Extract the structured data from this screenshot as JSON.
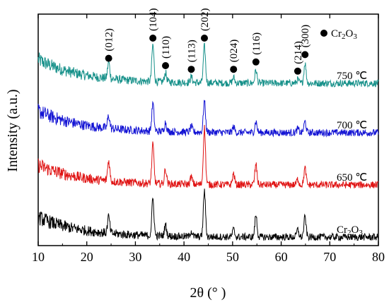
{
  "chart_data": {
    "type": "line",
    "xlabel": "2θ (° )",
    "ylabel": "Intensity (a.u.)",
    "xlim": [
      10,
      80
    ],
    "xticks": [
      "10",
      "20",
      "30",
      "40",
      "50",
      "60",
      "70",
      "80"
    ],
    "y_ticks_shown": false,
    "legend": {
      "label": "Cr",
      "sub": "2",
      "mid": "O",
      "sub2": "3",
      "position": "top-right",
      "marker": "filled-circle"
    },
    "peaks_2theta": [
      24.5,
      33.6,
      36.2,
      41.5,
      44.2,
      50.2,
      54.8,
      63.4,
      64.9
    ],
    "peak_labels": [
      {
        "hkl": "(012)",
        "x": 24.5
      },
      {
        "hkl": "(104)",
        "x": 33.6
      },
      {
        "hkl": "(110)",
        "x": 36.2
      },
      {
        "hkl": "(113)",
        "x": 41.5
      },
      {
        "hkl": "(202)",
        "x": 44.2
      },
      {
        "hkl": "(024)",
        "x": 50.2
      },
      {
        "hkl": "(116)",
        "x": 54.8
      },
      {
        "hkl": "(214)",
        "x": 63.4
      },
      {
        "hkl": "(300)",
        "x": 64.9
      }
    ],
    "series": [
      {
        "name": "750 ℃",
        "color": "#17918a",
        "relative_offset": 3,
        "peak_heights": [
          0.45,
          1.0,
          0.25,
          0.15,
          1.0,
          0.15,
          0.35,
          0.1,
          0.55
        ],
        "baseline_tail_start": 1.2
      },
      {
        "name": "700 ℃",
        "color": "#1414d4",
        "relative_offset": 2,
        "peak_heights": [
          0.35,
          0.75,
          0.25,
          0.15,
          0.85,
          0.15,
          0.3,
          0.1,
          0.3
        ],
        "baseline_tail_start": 1.1
      },
      {
        "name": "650 ℃",
        "color": "#e01414",
        "relative_offset": 1,
        "peak_heights": [
          0.55,
          1.05,
          0.4,
          0.2,
          1.55,
          0.3,
          0.55,
          0.15,
          0.45
        ],
        "baseline_tail_start": 1.0
      },
      {
        "name": "Cr2O3",
        "label_main": "Cr",
        "label_sub": "2",
        "label_mid": "O",
        "label_sub2": "3",
        "color": "#000000",
        "relative_offset": 0,
        "peak_heights": [
          0.45,
          1.0,
          0.3,
          0.15,
          1.25,
          0.2,
          0.6,
          0.2,
          0.55
        ],
        "baseline_tail_start": 1.0
      }
    ]
  }
}
